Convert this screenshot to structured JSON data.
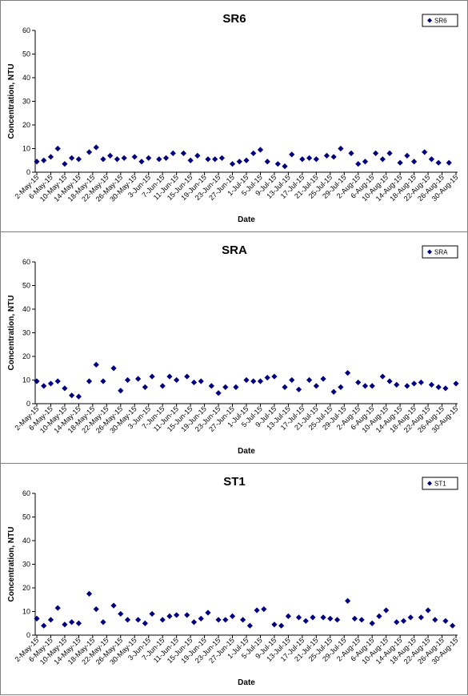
{
  "chart_data": [
    {
      "type": "scatter",
      "title": "SR6",
      "xlabel": "Date",
      "ylabel": "Concentration, NTU",
      "ylim": [
        0,
        60
      ],
      "yticks": [
        "0",
        "10",
        "20",
        "30",
        "40",
        "50",
        "60"
      ],
      "grid": false,
      "legend_position": "top-right",
      "x_tick_labels": [
        "2-May-15",
        "6-May-15",
        "10-May-15",
        "14-May-15",
        "18-May-15",
        "22-May-15",
        "26-May-15",
        "30-May-15",
        "3-Jun-15",
        "7-Jun-15",
        "11-Jun-15",
        "15-Jun-15",
        "19-Jun-15",
        "23-Jun-15",
        "27-Jun-15",
        "1-Jul-15",
        "5-Jul-15",
        "9-Jul-15",
        "13-Jul-15",
        "17-Jul-15",
        "21-Jul-15",
        "25-Jul-15",
        "29-Jul-15",
        "2-Aug-15",
        "6-Aug-15",
        "10-Aug-15",
        "14-Aug-15",
        "18-Aug-15",
        "22-Aug-15",
        "26-Aug-15",
        "30-Aug-15"
      ],
      "marker_color": "#000080",
      "series": [
        {
          "name": "SR6",
          "points": [
            {
              "x": "2-May-15",
              "y": 4.5
            },
            {
              "x": "4-May-15",
              "y": 5.0
            },
            {
              "x": "6-May-15",
              "y": 6.5
            },
            {
              "x": "8-May-15",
              "y": 10.0
            },
            {
              "x": "10-May-15",
              "y": 3.5
            },
            {
              "x": "12-May-15",
              "y": 6.0
            },
            {
              "x": "14-May-15",
              "y": 5.5
            },
            {
              "x": "17-May-15",
              "y": 8.5
            },
            {
              "x": "19-May-15",
              "y": 10.5
            },
            {
              "x": "21-May-15",
              "y": 5.5
            },
            {
              "x": "23-May-15",
              "y": 7.0
            },
            {
              "x": "25-May-15",
              "y": 5.5
            },
            {
              "x": "27-May-15",
              "y": 6.0
            },
            {
              "x": "30-May-15",
              "y": 6.5
            },
            {
              "x": "1-Jun-15",
              "y": 4.5
            },
            {
              "x": "3-Jun-15",
              "y": 6.0
            },
            {
              "x": "6-Jun-15",
              "y": 5.5
            },
            {
              "x": "8-Jun-15",
              "y": 6.0
            },
            {
              "x": "10-Jun-15",
              "y": 8.0
            },
            {
              "x": "13-Jun-15",
              "y": 8.0
            },
            {
              "x": "15-Jun-15",
              "y": 5.0
            },
            {
              "x": "17-Jun-15",
              "y": 7.0
            },
            {
              "x": "20-Jun-15",
              "y": 5.5
            },
            {
              "x": "22-Jun-15",
              "y": 5.5
            },
            {
              "x": "24-Jun-15",
              "y": 6.0
            },
            {
              "x": "27-Jun-15",
              "y": 3.5
            },
            {
              "x": "29-Jun-15",
              "y": 4.5
            },
            {
              "x": "1-Jul-15",
              "y": 5.0
            },
            {
              "x": "3-Jul-15",
              "y": 8.0
            },
            {
              "x": "5-Jul-15",
              "y": 9.5
            },
            {
              "x": "7-Jul-15",
              "y": 4.5
            },
            {
              "x": "10-Jul-15",
              "y": 3.5
            },
            {
              "x": "12-Jul-15",
              "y": 2.5
            },
            {
              "x": "14-Jul-15",
              "y": 7.5
            },
            {
              "x": "17-Jul-15",
              "y": 5.5
            },
            {
              "x": "19-Jul-15",
              "y": 6.0
            },
            {
              "x": "21-Jul-15",
              "y": 5.5
            },
            {
              "x": "24-Jul-15",
              "y": 7.0
            },
            {
              "x": "26-Jul-15",
              "y": 6.5
            },
            {
              "x": "28-Jul-15",
              "y": 10.0
            },
            {
              "x": "31-Jul-15",
              "y": 8.0
            },
            {
              "x": "2-Aug-15",
              "y": 3.5
            },
            {
              "x": "4-Aug-15",
              "y": 4.5
            },
            {
              "x": "7-Aug-15",
              "y": 8.0
            },
            {
              "x": "9-Aug-15",
              "y": 5.5
            },
            {
              "x": "11-Aug-15",
              "y": 8.0
            },
            {
              "x": "14-Aug-15",
              "y": 4.0
            },
            {
              "x": "16-Aug-15",
              "y": 7.0
            },
            {
              "x": "18-Aug-15",
              "y": 4.5
            },
            {
              "x": "21-Aug-15",
              "y": 8.5
            },
            {
              "x": "23-Aug-15",
              "y": 5.5
            },
            {
              "x": "25-Aug-15",
              "y": 4.0
            },
            {
              "x": "28-Aug-15",
              "y": 4.0
            }
          ]
        }
      ]
    },
    {
      "type": "scatter",
      "title": "SRA",
      "xlabel": "Date",
      "ylabel": "Concentration, NTU",
      "ylim": [
        0,
        60
      ],
      "yticks": [
        "0",
        "10",
        "20",
        "30",
        "40",
        "50",
        "60"
      ],
      "grid": false,
      "legend_position": "top-right",
      "x_tick_labels": [
        "2-May-15",
        "6-May-15",
        "10-May-15",
        "14-May-15",
        "18-May-15",
        "22-May-15",
        "26-May-15",
        "30-May-15",
        "3-Jun-15",
        "7-Jun-15",
        "11-Jun-15",
        "15-Jun-15",
        "19-Jun-15",
        "23-Jun-15",
        "27-Jun-15",
        "1-Jul-15",
        "5-Jul-15",
        "9-Jul-15",
        "13-Jul-15",
        "17-Jul-15",
        "21-Jul-15",
        "25-Jul-15",
        "29-Jul-15",
        "2-Aug-15",
        "6-Aug-15",
        "10-Aug-15",
        "14-Aug-15",
        "18-Aug-15",
        "22-Aug-15",
        "26-Aug-15",
        "30-Aug-15"
      ],
      "marker_color": "#000080",
      "series": [
        {
          "name": "SRA",
          "points": [
            {
              "x": "2-May-15",
              "y": 9.5
            },
            {
              "x": "4-May-15",
              "y": 7.5
            },
            {
              "x": "6-May-15",
              "y": 8.5
            },
            {
              "x": "8-May-15",
              "y": 9.5
            },
            {
              "x": "10-May-15",
              "y": 6.5
            },
            {
              "x": "12-May-15",
              "y": 3.5
            },
            {
              "x": "14-May-15",
              "y": 3.0
            },
            {
              "x": "17-May-15",
              "y": 9.5
            },
            {
              "x": "19-May-15",
              "y": 16.5
            },
            {
              "x": "21-May-15",
              "y": 9.5
            },
            {
              "x": "24-May-15",
              "y": 15.0
            },
            {
              "x": "26-May-15",
              "y": 5.5
            },
            {
              "x": "28-May-15",
              "y": 10.0
            },
            {
              "x": "31-May-15",
              "y": 10.5
            },
            {
              "x": "2-Jun-15",
              "y": 7.0
            },
            {
              "x": "4-Jun-15",
              "y": 11.5
            },
            {
              "x": "7-Jun-15",
              "y": 7.5
            },
            {
              "x": "9-Jun-15",
              "y": 11.5
            },
            {
              "x": "11-Jun-15",
              "y": 10.0
            },
            {
              "x": "14-Jun-15",
              "y": 11.5
            },
            {
              "x": "16-Jun-15",
              "y": 9.0
            },
            {
              "x": "18-Jun-15",
              "y": 9.5
            },
            {
              "x": "21-Jun-15",
              "y": 7.5
            },
            {
              "x": "23-Jun-15",
              "y": 4.5
            },
            {
              "x": "25-Jun-15",
              "y": 7.0
            },
            {
              "x": "28-Jun-15",
              "y": 7.0
            },
            {
              "x": "1-Jul-15",
              "y": 10.0
            },
            {
              "x": "3-Jul-15",
              "y": 9.5
            },
            {
              "x": "5-Jul-15",
              "y": 9.5
            },
            {
              "x": "7-Jul-15",
              "y": 11.0
            },
            {
              "x": "9-Jul-15",
              "y": 11.5
            },
            {
              "x": "12-Jul-15",
              "y": 7.0
            },
            {
              "x": "14-Jul-15",
              "y": 10.0
            },
            {
              "x": "16-Jul-15",
              "y": 6.0
            },
            {
              "x": "19-Jul-15",
              "y": 10.0
            },
            {
              "x": "21-Jul-15",
              "y": 7.5
            },
            {
              "x": "23-Jul-15",
              "y": 10.5
            },
            {
              "x": "26-Jul-15",
              "y": 5.0
            },
            {
              "x": "28-Jul-15",
              "y": 7.0
            },
            {
              "x": "30-Jul-15",
              "y": 13.0
            },
            {
              "x": "2-Aug-15",
              "y": 9.0
            },
            {
              "x": "4-Aug-15",
              "y": 7.5
            },
            {
              "x": "6-Aug-15",
              "y": 7.5
            },
            {
              "x": "9-Aug-15",
              "y": 11.5
            },
            {
              "x": "11-Aug-15",
              "y": 9.5
            },
            {
              "x": "13-Aug-15",
              "y": 8.0
            },
            {
              "x": "16-Aug-15",
              "y": 7.5
            },
            {
              "x": "18-Aug-15",
              "y": 8.5
            },
            {
              "x": "20-Aug-15",
              "y": 9.0
            },
            {
              "x": "23-Aug-15",
              "y": 8.0
            },
            {
              "x": "25-Aug-15",
              "y": 7.0
            },
            {
              "x": "27-Aug-15",
              "y": 6.5
            },
            {
              "x": "30-Aug-15",
              "y": 8.5
            }
          ]
        }
      ]
    },
    {
      "type": "scatter",
      "title": "ST1",
      "xlabel": "Date",
      "ylabel": "Concentration, NTU",
      "ylim": [
        0,
        60
      ],
      "yticks": [
        "0",
        "10",
        "20",
        "30",
        "40",
        "50",
        "60"
      ],
      "grid": false,
      "legend_position": "top-right",
      "x_tick_labels": [
        "2-May-15",
        "6-May-15",
        "10-May-15",
        "14-May-15",
        "18-May-15",
        "22-May-15",
        "26-May-15",
        "30-May-15",
        "3-Jun-15",
        "7-Jun-15",
        "11-Jun-15",
        "15-Jun-15",
        "19-Jun-15",
        "23-Jun-15",
        "27-Jun-15",
        "1-Jul-15",
        "5-Jul-15",
        "9-Jul-15",
        "13-Jul-15",
        "17-Jul-15",
        "21-Jul-15",
        "25-Jul-15",
        "29-Jul-15",
        "2-Aug-15",
        "6-Aug-15",
        "10-Aug-15",
        "14-Aug-15",
        "18-Aug-15",
        "22-Aug-15",
        "26-Aug-15",
        "30-Aug-15"
      ],
      "marker_color": "#000080",
      "series": [
        {
          "name": "ST1",
          "points": [
            {
              "x": "2-May-15",
              "y": 7.0
            },
            {
              "x": "4-May-15",
              "y": 4.0
            },
            {
              "x": "6-May-15",
              "y": 6.5
            },
            {
              "x": "8-May-15",
              "y": 11.5
            },
            {
              "x": "10-May-15",
              "y": 4.5
            },
            {
              "x": "12-May-15",
              "y": 5.5
            },
            {
              "x": "14-May-15",
              "y": 5.0
            },
            {
              "x": "17-May-15",
              "y": 17.5
            },
            {
              "x": "19-May-15",
              "y": 11.0
            },
            {
              "x": "21-May-15",
              "y": 5.5
            },
            {
              "x": "24-May-15",
              "y": 12.5
            },
            {
              "x": "26-May-15",
              "y": 9.0
            },
            {
              "x": "28-May-15",
              "y": 6.5
            },
            {
              "x": "31-May-15",
              "y": 6.5
            },
            {
              "x": "2-Jun-15",
              "y": 5.0
            },
            {
              "x": "4-Jun-15",
              "y": 9.0
            },
            {
              "x": "7-Jun-15",
              "y": 6.5
            },
            {
              "x": "9-Jun-15",
              "y": 8.0
            },
            {
              "x": "11-Jun-15",
              "y": 8.5
            },
            {
              "x": "14-Jun-15",
              "y": 8.5
            },
            {
              "x": "16-Jun-15",
              "y": 5.5
            },
            {
              "x": "18-Jun-15",
              "y": 7.0
            },
            {
              "x": "20-Jun-15",
              "y": 9.5
            },
            {
              "x": "23-Jun-15",
              "y": 6.5
            },
            {
              "x": "25-Jun-15",
              "y": 6.5
            },
            {
              "x": "27-Jun-15",
              "y": 8.0
            },
            {
              "x": "30-Jun-15",
              "y": 6.5
            },
            {
              "x": "2-Jul-15",
              "y": 4.0
            },
            {
              "x": "4-Jul-15",
              "y": 10.5
            },
            {
              "x": "6-Jul-15",
              "y": 11.0
            },
            {
              "x": "9-Jul-15",
              "y": 4.5
            },
            {
              "x": "11-Jul-15",
              "y": 4.0
            },
            {
              "x": "13-Jul-15",
              "y": 8.0
            },
            {
              "x": "16-Jul-15",
              "y": 7.5
            },
            {
              "x": "18-Jul-15",
              "y": 6.0
            },
            {
              "x": "20-Jul-15",
              "y": 7.5
            },
            {
              "x": "23-Jul-15",
              "y": 7.5
            },
            {
              "x": "25-Jul-15",
              "y": 7.0
            },
            {
              "x": "27-Jul-15",
              "y": 6.5
            },
            {
              "x": "30-Jul-15",
              "y": 14.5
            },
            {
              "x": "1-Aug-15",
              "y": 7.0
            },
            {
              "x": "3-Aug-15",
              "y": 6.5
            },
            {
              "x": "6-Aug-15",
              "y": 5.0
            },
            {
              "x": "8-Aug-15",
              "y": 8.0
            },
            {
              "x": "10-Aug-15",
              "y": 10.5
            },
            {
              "x": "13-Aug-15",
              "y": 5.5
            },
            {
              "x": "15-Aug-15",
              "y": 6.0
            },
            {
              "x": "17-Aug-15",
              "y": 7.5
            },
            {
              "x": "20-Aug-15",
              "y": 7.5
            },
            {
              "x": "22-Aug-15",
              "y": 10.5
            },
            {
              "x": "24-Aug-15",
              "y": 6.5
            },
            {
              "x": "27-Aug-15",
              "y": 6.0
            },
            {
              "x": "29-Aug-15",
              "y": 4.0
            }
          ]
        }
      ]
    }
  ]
}
